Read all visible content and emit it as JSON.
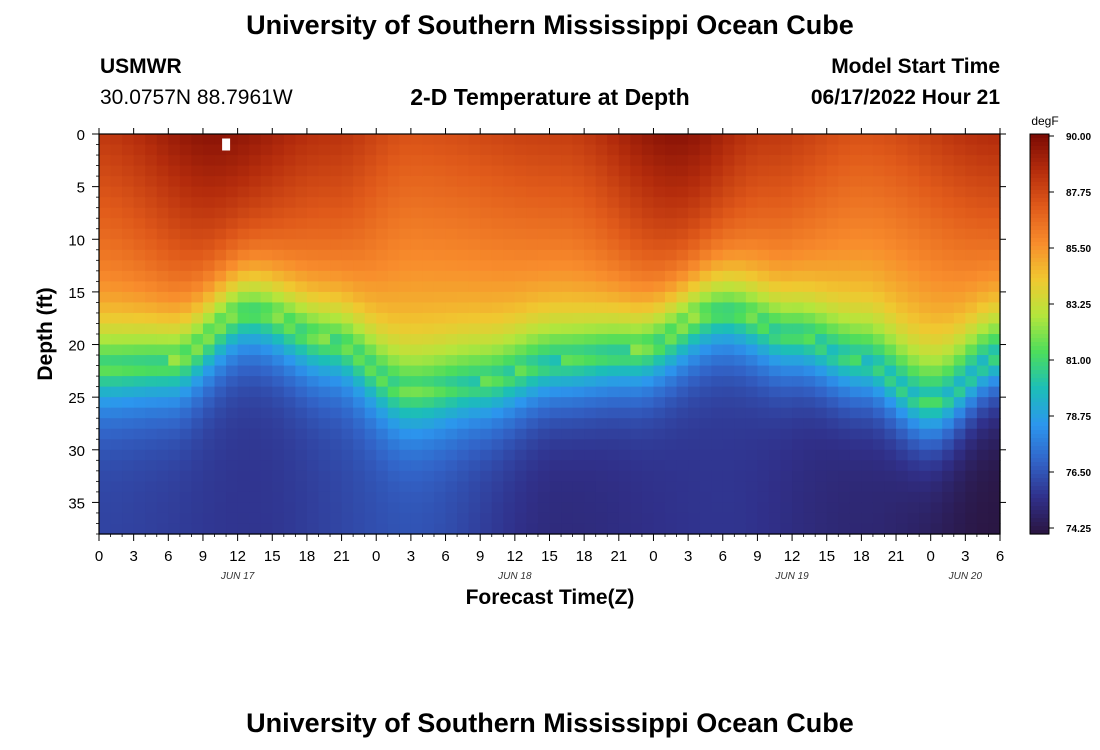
{
  "header": {
    "title": "University of Southern Mississippi Ocean Cube",
    "station_name": "USMWR",
    "station_coords": "30.0757N  88.7961W",
    "plot_title": "2-D Temperature at Depth",
    "model_label": "Model Start Time",
    "model_time": "06/17/2022 Hour 21"
  },
  "footer": {
    "title": "University of Southern Mississippi Ocean Cube"
  },
  "chart_data": {
    "type": "heatmap",
    "title": "2-D Temperature at Depth",
    "xlabel": "Forecast Time(Z)",
    "ylabel": "Depth (ft)",
    "x_hours": [
      0,
      78
    ],
    "x_tick_labels": [
      "0",
      "3",
      "6",
      "9",
      "12",
      "15",
      "18",
      "21",
      "0",
      "3",
      "6",
      "9",
      "12",
      "15",
      "18",
      "21",
      "0",
      "3",
      "6",
      "9",
      "12",
      "15",
      "18",
      "21",
      "0",
      "3",
      "6"
    ],
    "date_labels": [
      {
        "label": "JUN 17",
        "hour": 12
      },
      {
        "label": "JUN 18",
        "hour": 36
      },
      {
        "label": "JUN 19",
        "hour": 60
      },
      {
        "label": "JUN 20",
        "hour": 75
      }
    ],
    "ylim": [
      0,
      38
    ],
    "y_ticks": [
      0,
      5,
      10,
      15,
      20,
      25,
      30,
      35
    ],
    "colorbar": {
      "label": "degF",
      "min": 74.25,
      "max": 90.0,
      "tick_labels": [
        "90.00",
        "87.75",
        "85.50",
        "83.25",
        "81.00",
        "78.75",
        "76.50",
        "74.25"
      ],
      "colors": [
        "#2a1540",
        "#30308a",
        "#3264c8",
        "#2c96ee",
        "#1cbeb8",
        "#4cdd5c",
        "#b4e63c",
        "#f0c830",
        "#f88c2c",
        "#e05a1a",
        "#b42c0c",
        "#7a0a04"
      ]
    },
    "surface_temp_keyframes": {
      "hours": [
        0,
        10,
        20,
        27,
        40,
        50,
        58,
        66,
        78
      ],
      "degF": [
        88.2,
        89.6,
        88.4,
        87.4,
        88.0,
        89.6,
        88.2,
        87.4,
        88.6
      ]
    },
    "thermocline_depth_keyframes": {
      "hours": [
        0,
        6,
        13,
        20,
        27,
        33,
        40,
        46,
        54,
        60,
        66,
        72,
        78
      ],
      "ft": [
        22,
        21.5,
        16.5,
        19.5,
        24.5,
        23.5,
        21.5,
        20.5,
        16.5,
        19,
        21.5,
        25.5,
        21
      ]
    },
    "bottom_temp_keyframes": {
      "hours": [
        0,
        13,
        27,
        40,
        54,
        66,
        78
      ],
      "degF": [
        76.2,
        75.8,
        76.6,
        75.4,
        75.8,
        75.2,
        74.3
      ]
    },
    "marker": {
      "hour": 11,
      "depth": 1
    }
  }
}
